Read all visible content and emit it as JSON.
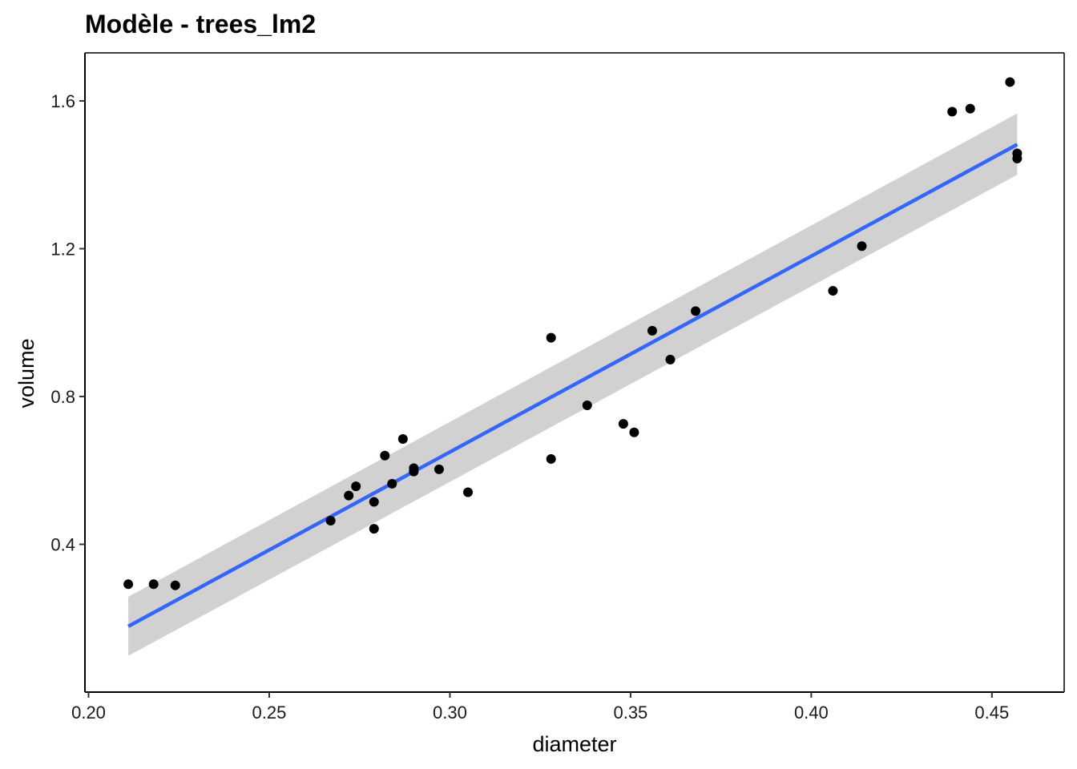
{
  "chart_data": {
    "type": "scatter",
    "title": "Modèle - trees_lm2",
    "xlabel": "diameter",
    "ylabel": "volume",
    "xlim": [
      0.199,
      0.47
    ],
    "ylim": [
      0.0,
      1.73
    ],
    "xticks": [
      "0.20",
      "0.25",
      "0.30",
      "0.35",
      "0.40",
      "0.45"
    ],
    "xtick_values": [
      0.2,
      0.25,
      0.3,
      0.35,
      0.4,
      0.45
    ],
    "yticks": [
      "0.4",
      "0.8",
      "1.2",
      "1.6"
    ],
    "ytick_values": [
      0.4,
      0.8,
      1.2,
      1.6
    ],
    "grid": false,
    "colors": {
      "points": "#000000",
      "fit_line": "#3366ff",
      "ribbon": "#cccccc"
    },
    "points": [
      {
        "x": 0.211,
        "y": 0.292
      },
      {
        "x": 0.218,
        "y": 0.292
      },
      {
        "x": 0.224,
        "y": 0.289
      },
      {
        "x": 0.267,
        "y": 0.464
      },
      {
        "x": 0.272,
        "y": 0.532
      },
      {
        "x": 0.274,
        "y": 0.557
      },
      {
        "x": 0.279,
        "y": 0.442
      },
      {
        "x": 0.279,
        "y": 0.515
      },
      {
        "x": 0.282,
        "y": 0.64
      },
      {
        "x": 0.284,
        "y": 0.564
      },
      {
        "x": 0.287,
        "y": 0.685
      },
      {
        "x": 0.29,
        "y": 0.597
      },
      {
        "x": 0.29,
        "y": 0.606
      },
      {
        "x": 0.297,
        "y": 0.603
      },
      {
        "x": 0.305,
        "y": 0.541
      },
      {
        "x": 0.328,
        "y": 0.959
      },
      {
        "x": 0.328,
        "y": 0.631
      },
      {
        "x": 0.338,
        "y": 0.776
      },
      {
        "x": 0.348,
        "y": 0.726
      },
      {
        "x": 0.351,
        "y": 0.703
      },
      {
        "x": 0.356,
        "y": 0.978
      },
      {
        "x": 0.361,
        "y": 0.9
      },
      {
        "x": 0.368,
        "y": 1.031
      },
      {
        "x": 0.406,
        "y": 1.086
      },
      {
        "x": 0.414,
        "y": 1.207
      },
      {
        "x": 0.439,
        "y": 1.571
      },
      {
        "x": 0.444,
        "y": 1.579
      },
      {
        "x": 0.455,
        "y": 1.651
      },
      {
        "x": 0.457,
        "y": 1.458
      },
      {
        "x": 0.457,
        "y": 1.444
      }
    ],
    "fit_line": {
      "x": [
        0.211,
        0.457
      ],
      "y": [
        0.178,
        1.482
      ]
    },
    "ribbon": {
      "x": [
        0.211,
        0.457
      ],
      "upper": [
        0.258,
        1.566
      ],
      "lower": [
        0.098,
        1.4
      ]
    }
  }
}
